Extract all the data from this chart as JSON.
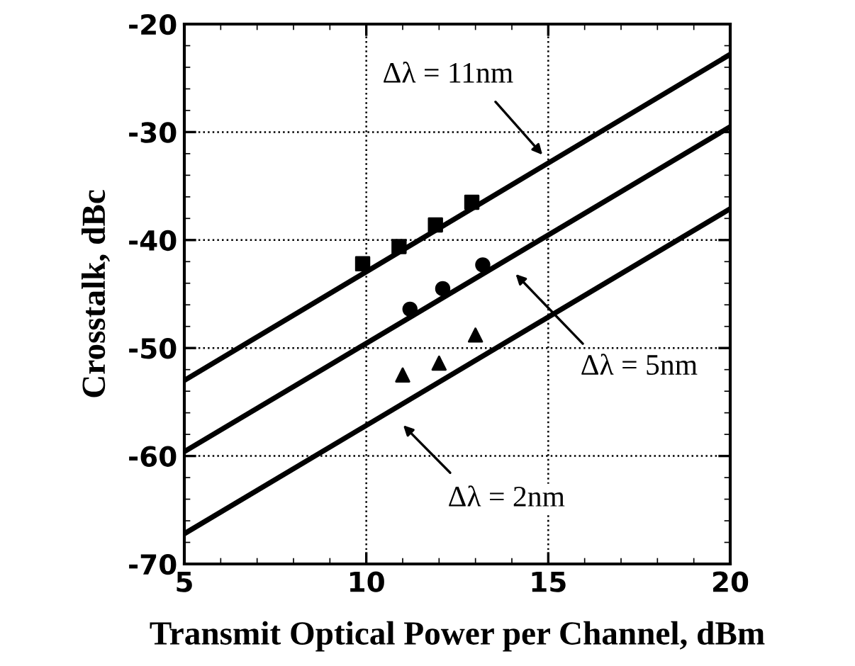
{
  "chart_data": {
    "type": "scatter",
    "xlabel": "Transmit Optical Power per Channel, dBm",
    "ylabel": "Crosstalk, dBc",
    "xlim": [
      5,
      20
    ],
    "ylim": [
      -70,
      -20
    ],
    "xticks": [
      5,
      10,
      15,
      20
    ],
    "yticks": [
      -70,
      -60,
      -50,
      -40,
      -30,
      -20
    ],
    "grid": true,
    "legend": false,
    "series": [
      {
        "type": "line",
        "color": "#000000",
        "x": [
          5,
          20
        ],
        "values": [
          -53.0,
          -22.8
        ],
        "line_style": "solid",
        "marker": "none"
      },
      {
        "type": "line",
        "color": "#000000",
        "x": [
          5,
          20
        ],
        "values": [
          -59.6,
          -29.5
        ],
        "line_style": "solid",
        "marker": "none"
      },
      {
        "type": "line",
        "color": "#000000",
        "x": [
          5,
          20
        ],
        "values": [
          -67.2,
          -37.1
        ],
        "line_style": "solid",
        "marker": "none"
      },
      {
        "color": "#000000",
        "x": [
          9.9,
          10.9,
          11.9,
          12.9
        ],
        "values": [
          -42.2,
          -40.6,
          -38.6,
          -36.5
        ],
        "marker": "square"
      },
      {
        "color": "#000000",
        "x": [
          11.2,
          12.1,
          13.2
        ],
        "values": [
          -46.4,
          -44.5,
          -42.3
        ],
        "marker": "circle"
      },
      {
        "color": "#000000",
        "x": [
          11.0,
          12.0,
          13.0
        ],
        "values": [
          -52.5,
          -51.4,
          -48.8
        ],
        "marker": "triangle"
      }
    ],
    "annotations": [
      "Δλ = 11nm",
      "Δλ = 5nm",
      "Δλ = 2nm"
    ]
  }
}
